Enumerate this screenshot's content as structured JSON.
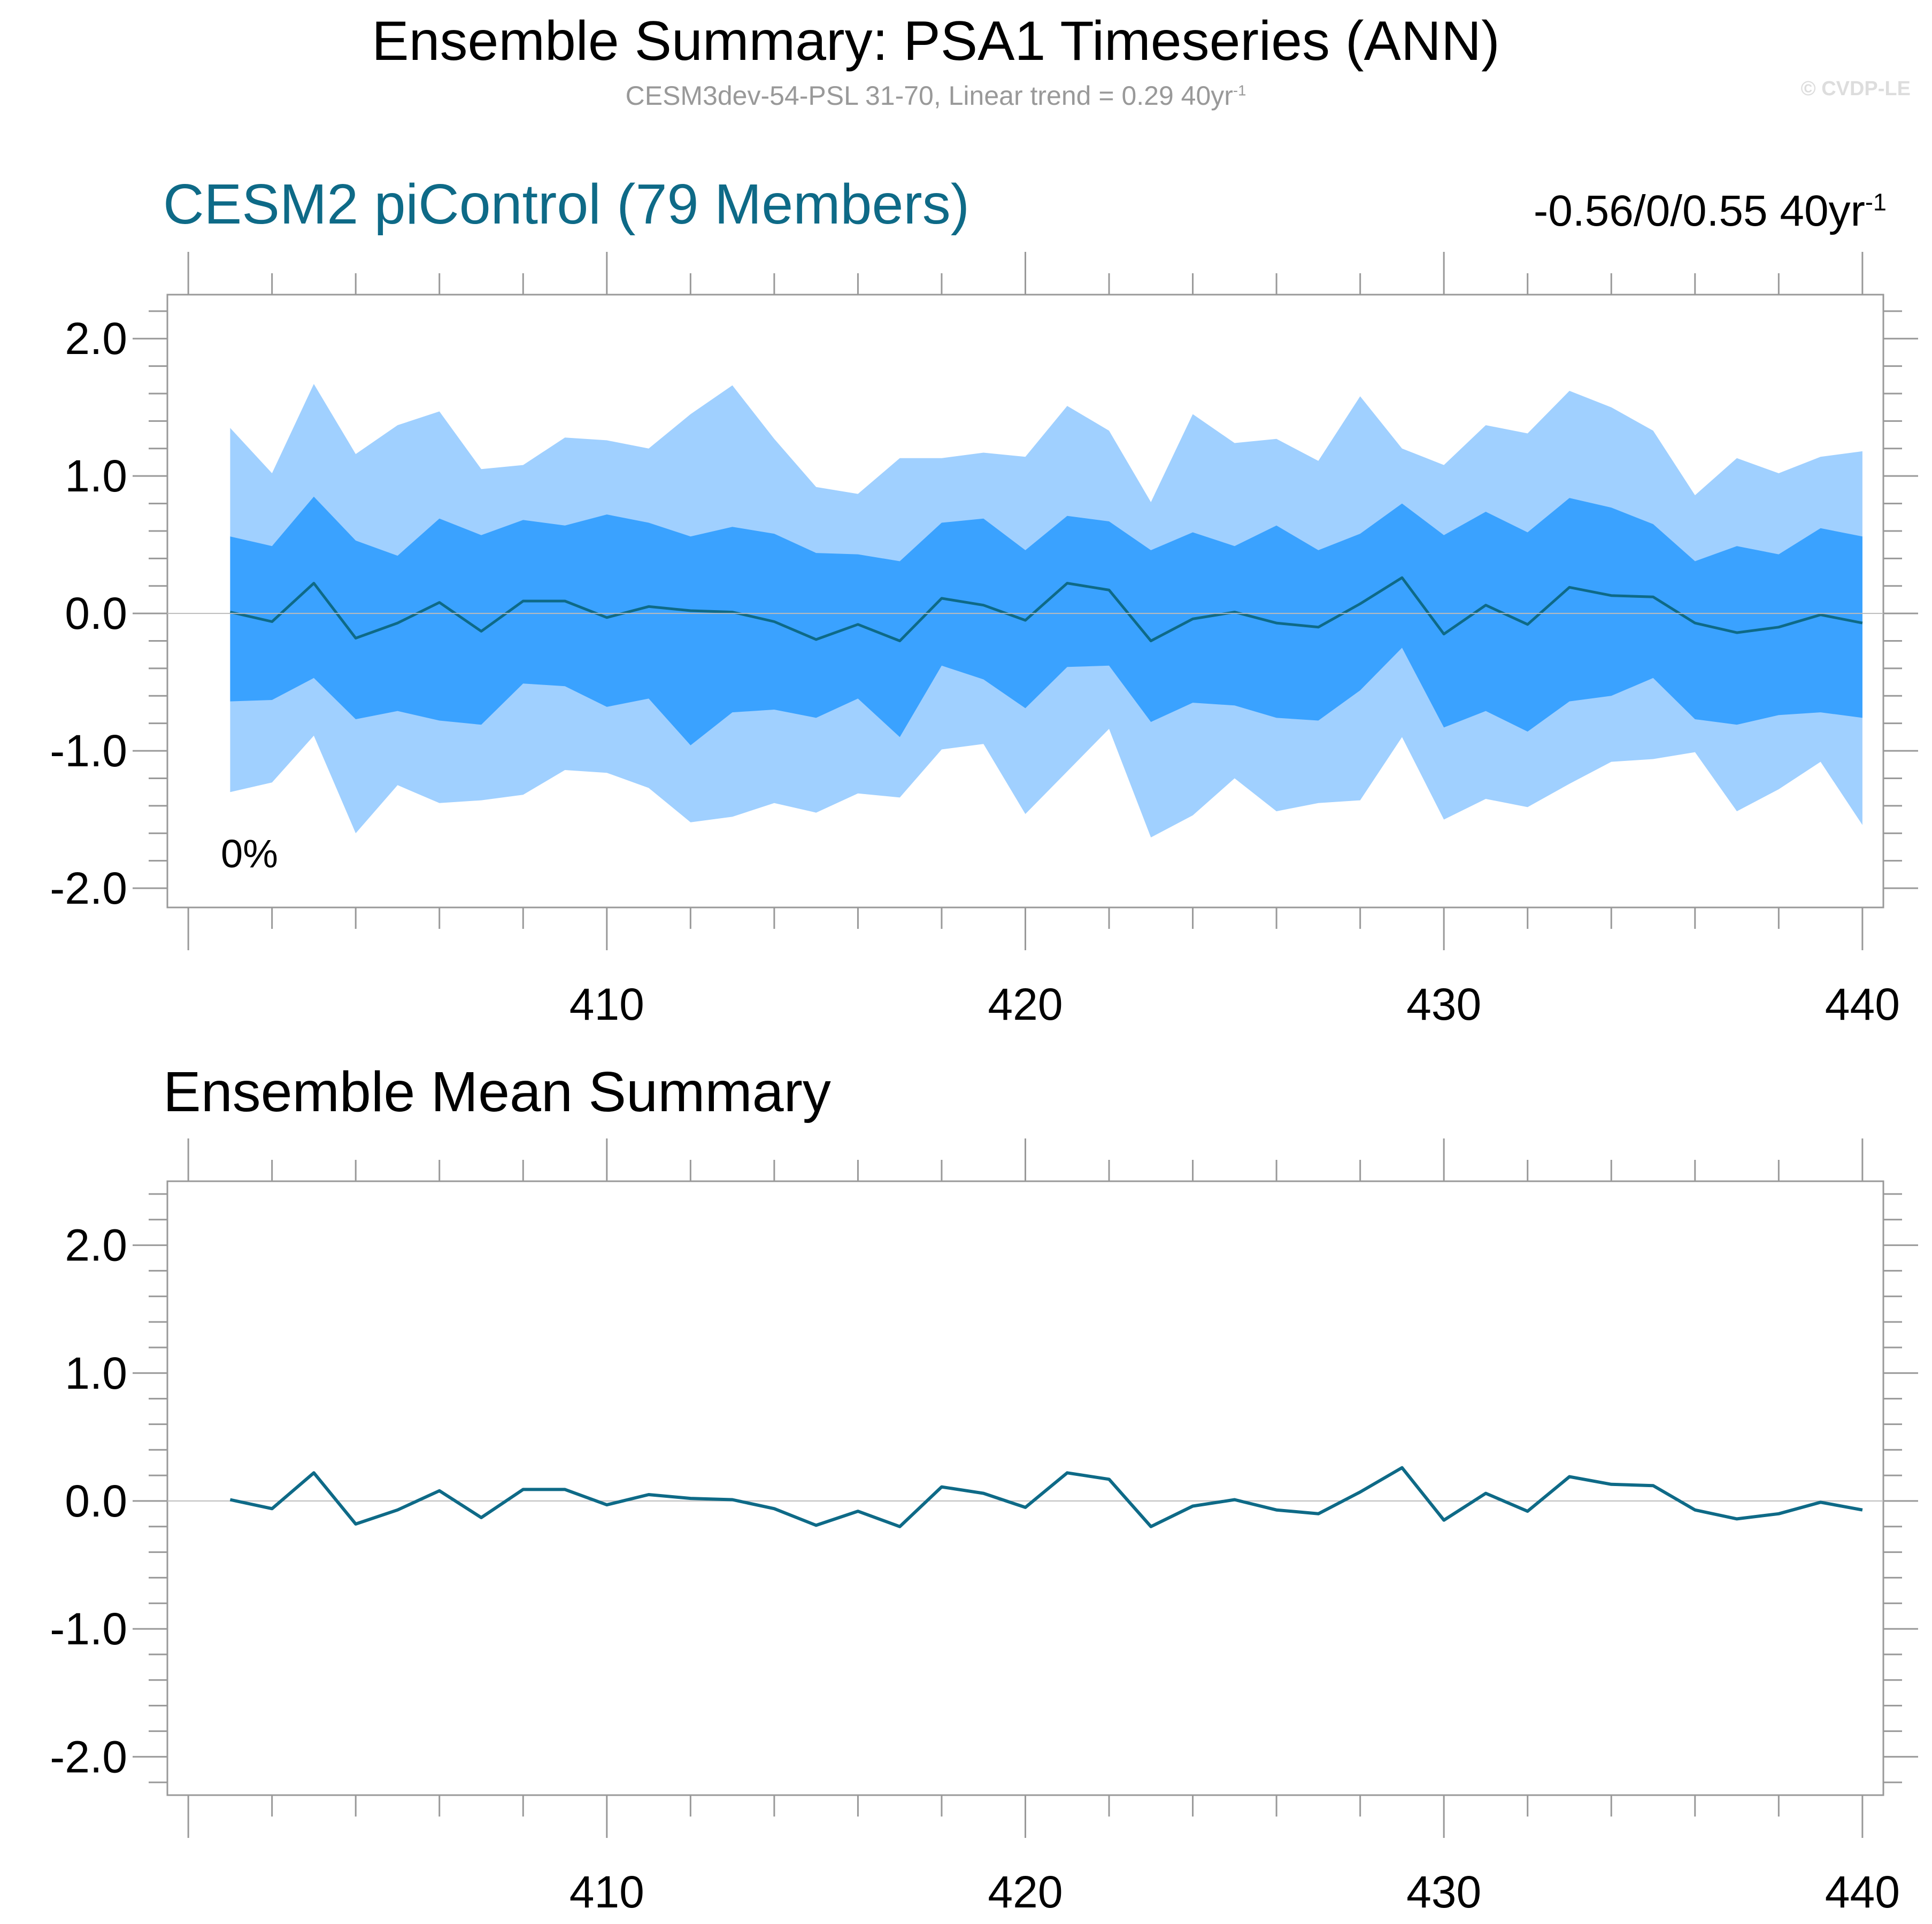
{
  "header": {
    "title": "Ensemble Summary: PSA1 Timeseries (ANN)",
    "subtitle_main": "CESM3dev-54-PSL 31-70, Linear trend = 0.29 40yr",
    "subtitle_sup": "-1",
    "copyright": "© CVDP-LE"
  },
  "panel1": {
    "title": "CESM2 piControl (79 Members)",
    "title_color": "#0e6a87",
    "trend_range_main": "-0.56/0/0.55 40yr",
    "trend_range_sup": "-1",
    "percent_label": "0%"
  },
  "panel2": {
    "title": "Ensemble Mean Summary"
  },
  "colors": {
    "outer_band": "#a0d0ff",
    "inner_band": "#3aa2ff",
    "mean_line": "#0e6a87",
    "axis": "#999999",
    "zero_line": "#bbbbbb"
  },
  "chart_data": [
    {
      "type": "area",
      "x": [
        401,
        402,
        403,
        404,
        405,
        406,
        407,
        408,
        409,
        410,
        411,
        412,
        413,
        414,
        415,
        416,
        417,
        418,
        419,
        420,
        421,
        422,
        423,
        424,
        425,
        426,
        427,
        428,
        429,
        430,
        431,
        432,
        433,
        434,
        435,
        436,
        437,
        438,
        439,
        440
      ],
      "series": [
        {
          "values": [
            1.35,
            1.02,
            1.67,
            1.16,
            1.37,
            1.47,
            1.05,
            1.08,
            1.28,
            1.26,
            1.2,
            1.45,
            1.66,
            1.27,
            0.92,
            0.87,
            1.13,
            1.13,
            1.17,
            1.14,
            1.51,
            1.33,
            0.81,
            1.45,
            1.24,
            1.27,
            1.11,
            1.58,
            1.2,
            1.08,
            1.37,
            1.31,
            1.62,
            1.5,
            1.33,
            0.86,
            1.13,
            1.02,
            1.14,
            1.18
          ]
        },
        {
          "values": [
            0.56,
            0.49,
            0.85,
            0.53,
            0.42,
            0.69,
            0.57,
            0.68,
            0.64,
            0.72,
            0.66,
            0.56,
            0.63,
            0.58,
            0.44,
            0.43,
            0.38,
            0.66,
            0.69,
            0.46,
            0.71,
            0.67,
            0.46,
            0.59,
            0.49,
            0.64,
            0.46,
            0.58,
            0.8,
            0.57,
            0.74,
            0.59,
            0.84,
            0.77,
            0.65,
            0.38,
            0.49,
            0.43,
            0.62,
            0.56
          ]
        },
        {
          "values": [
            0.01,
            -0.06,
            0.22,
            -0.18,
            -0.07,
            0.08,
            -0.13,
            0.09,
            0.09,
            -0.03,
            0.05,
            0.02,
            0.01,
            -0.06,
            -0.19,
            -0.08,
            -0.2,
            0.11,
            0.06,
            -0.05,
            0.22,
            0.17,
            -0.2,
            -0.04,
            0.01,
            -0.07,
            -0.1,
            0.07,
            0.26,
            -0.15,
            0.06,
            -0.08,
            0.19,
            0.13,
            0.12,
            -0.07,
            -0.14,
            -0.1,
            -0.01,
            -0.07
          ]
        },
        {
          "values": [
            -0.64,
            -0.63,
            -0.47,
            -0.77,
            -0.71,
            -0.78,
            -0.81,
            -0.51,
            -0.53,
            -0.68,
            -0.62,
            -0.96,
            -0.72,
            -0.7,
            -0.76,
            -0.62,
            -0.9,
            -0.38,
            -0.48,
            -0.69,
            -0.39,
            -0.38,
            -0.79,
            -0.65,
            -0.67,
            -0.76,
            -0.78,
            -0.56,
            -0.25,
            -0.83,
            -0.71,
            -0.86,
            -0.64,
            -0.6,
            -0.47,
            -0.77,
            -0.81,
            -0.74,
            -0.72,
            -0.76
          ]
        },
        {
          "values": [
            -1.3,
            -1.23,
            -0.89,
            -1.6,
            -1.25,
            -1.38,
            -1.36,
            -1.32,
            -1.14,
            -1.16,
            -1.27,
            -1.52,
            -1.48,
            -1.38,
            -1.45,
            -1.31,
            -1.34,
            -0.99,
            -0.95,
            -1.46,
            -1.15,
            -0.84,
            -1.63,
            -1.47,
            -1.2,
            -1.44,
            -1.38,
            -1.36,
            -0.9,
            -1.5,
            -1.35,
            -1.41,
            -1.24,
            -1.08,
            -1.06,
            -1.01,
            -1.44,
            -1.28,
            -1.08,
            -1.54
          ]
        }
      ],
      "xticks": [
        "410",
        "420",
        "430",
        "440"
      ],
      "yticks": [
        "2.0",
        "1.0",
        "0.0",
        "-1.0",
        "-2.0"
      ],
      "xlim": [
        399.5,
        440.5
      ],
      "ylim": [
        -2.14,
        2.32
      ]
    },
    {
      "type": "line",
      "x": [
        401,
        402,
        403,
        404,
        405,
        406,
        407,
        408,
        409,
        410,
        411,
        412,
        413,
        414,
        415,
        416,
        417,
        418,
        419,
        420,
        421,
        422,
        423,
        424,
        425,
        426,
        427,
        428,
        429,
        430,
        431,
        432,
        433,
        434,
        435,
        436,
        437,
        438,
        439,
        440
      ],
      "values": [
        0.01,
        -0.06,
        0.22,
        -0.18,
        -0.07,
        0.08,
        -0.13,
        0.09,
        0.09,
        -0.03,
        0.05,
        0.02,
        0.01,
        -0.06,
        -0.19,
        -0.08,
        -0.2,
        0.11,
        0.06,
        -0.05,
        0.22,
        0.17,
        -0.2,
        -0.04,
        0.01,
        -0.07,
        -0.1,
        0.07,
        0.26,
        -0.15,
        0.06,
        -0.08,
        0.19,
        0.13,
        0.12,
        -0.07,
        -0.14,
        -0.1,
        -0.01,
        -0.07
      ],
      "xticks": [
        "410",
        "420",
        "430",
        "440"
      ],
      "yticks": [
        "2.0",
        "1.0",
        "0.0",
        "-1.0",
        "-2.0"
      ],
      "xlim": [
        399.5,
        440.5
      ],
      "ylim": [
        -2.3,
        2.5
      ]
    }
  ]
}
